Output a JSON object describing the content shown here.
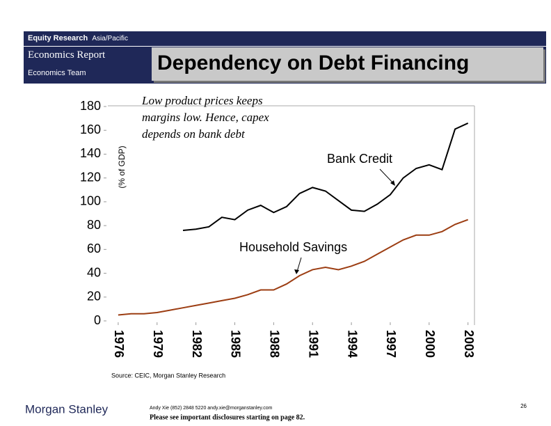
{
  "header": {
    "brand": "Equity Research",
    "region": "Asia/Pacific",
    "report": "Economics Report",
    "team": "Economics Team",
    "title": "Dependency on Debt Financing"
  },
  "chart_data": {
    "type": "line",
    "y_label": "(% of GDP)",
    "note": "Low product prices keeps margins low.  Hence, capex depends on bank debt",
    "x": [
      1976,
      1977,
      1978,
      1979,
      1980,
      1981,
      1982,
      1983,
      1984,
      1985,
      1986,
      1987,
      1988,
      1989,
      1990,
      1991,
      1992,
      1993,
      1994,
      1995,
      1996,
      1997,
      1998,
      1999,
      2000,
      2001,
      2002,
      2003
    ],
    "series": [
      {
        "name": "Bank Credit",
        "color": "#000000",
        "values": [
          null,
          null,
          null,
          null,
          null,
          76,
          77,
          79,
          87,
          85,
          93,
          97,
          91,
          96,
          107,
          112,
          109,
          101,
          93,
          92,
          98,
          106,
          120,
          128,
          131,
          127,
          161,
          166
        ]
      },
      {
        "name": "Household Savings",
        "color": "#9c3d12",
        "values": [
          5,
          6,
          6,
          7,
          9,
          11,
          13,
          15,
          17,
          19,
          22,
          26,
          26,
          31,
          38,
          43,
          45,
          43,
          46,
          50,
          56,
          62,
          68,
          72,
          72,
          75,
          81,
          85
        ]
      }
    ],
    "xlim": [
      1975.2,
      2003.5
    ],
    "xticks": [
      1976,
      1979,
      1982,
      1985,
      1988,
      1991,
      1994,
      1997,
      2000,
      2003
    ],
    "ylim": [
      0,
      180
    ],
    "yticks": [
      0,
      20,
      40,
      60,
      80,
      100,
      120,
      140,
      160,
      180
    ]
  },
  "footer": {
    "source": "Source: CEIC, Morgan Stanley Research",
    "contact": "Andy Xie (852) 2848 5220  andy.xie@morganstanley.com",
    "disclaimer": "Please see important disclosures starting on page 82.",
    "page": "26",
    "logo": "Morgan Stanley"
  }
}
